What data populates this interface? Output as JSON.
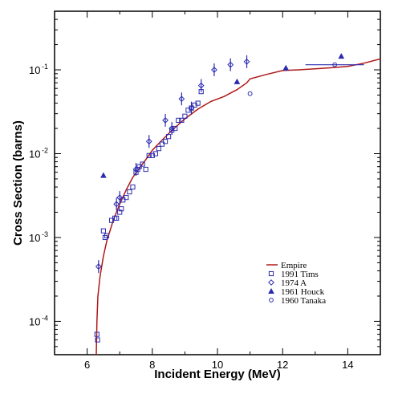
{
  "chart_data": {
    "type": "scatter",
    "xlabel": "Incident Energy (MeV)",
    "ylabel": "Cross Section (barns)",
    "xlim": [
      5,
      15
    ],
    "ylim": [
      4e-05,
      0.5
    ],
    "yscale": "log",
    "x_ticks": [
      "6",
      "8",
      "10",
      "12",
      "14"
    ],
    "y_ticks": [
      {
        "base": "10",
        "exp": "-4",
        "value": 0.0001
      },
      {
        "base": "10",
        "exp": "-3",
        "value": 0.001
      },
      {
        "base": "10",
        "exp": "-2",
        "value": 0.01
      },
      {
        "base": "10",
        "exp": "-1",
        "value": 0.1
      }
    ],
    "legend_position": "lower-right",
    "colors": {
      "curve": "#b01818",
      "data": "#2b2bb0"
    },
    "series": [
      {
        "name": "Empire",
        "kind": "line",
        "x": [
          6.28,
          6.3,
          6.33,
          6.4,
          6.5,
          6.6,
          6.8,
          7.0,
          7.2,
          7.4,
          7.6,
          7.8,
          8.0,
          8.3,
          8.6,
          9.0,
          9.4,
          9.8,
          10.2,
          10.6,
          10.9,
          11.0,
          11.5,
          12.0,
          12.5,
          13.0,
          13.5,
          14.0,
          14.5,
          15.0
        ],
        "y": [
          4e-05,
          0.0001,
          0.0002,
          0.00035,
          0.0006,
          0.0009,
          0.0016,
          0.0025,
          0.0037,
          0.0052,
          0.0067,
          0.0085,
          0.011,
          0.0145,
          0.019,
          0.026,
          0.034,
          0.042,
          0.048,
          0.058,
          0.07,
          0.078,
          0.088,
          0.098,
          0.1,
          0.103,
          0.106,
          0.11,
          0.12,
          0.135
        ]
      },
      {
        "name": "1991 Tims",
        "kind": "points",
        "marker": "square",
        "x": [
          6.3,
          6.32,
          6.5,
          6.55,
          6.6,
          6.75,
          6.85,
          6.9,
          7.0,
          7.05,
          7.1,
          7.2,
          7.3,
          7.4,
          7.5,
          7.55,
          7.6,
          7.7,
          7.8,
          7.9,
          8.0,
          8.1,
          8.2,
          8.3,
          8.4,
          8.5,
          8.6,
          8.7,
          8.8,
          8.9,
          9.0,
          9.1,
          9.2,
          9.3,
          9.4,
          9.5
        ],
        "y": [
          7e-05,
          6e-05,
          0.0012,
          0.001,
          0.00105,
          0.0016,
          0.0017,
          0.0017,
          0.002,
          0.0022,
          0.0028,
          0.003,
          0.0035,
          0.004,
          0.006,
          0.0065,
          0.007,
          0.0075,
          0.0065,
          0.0095,
          0.0095,
          0.01,
          0.0115,
          0.013,
          0.014,
          0.016,
          0.019,
          0.02,
          0.025,
          0.025,
          0.028,
          0.033,
          0.035,
          0.038,
          0.04,
          0.055
        ]
      },
      {
        "name": "1974 A",
        "kind": "points",
        "marker": "diamond",
        "x": [
          6.35,
          6.9,
          7.0,
          7.5,
          7.9,
          8.4,
          8.6,
          8.9,
          9.2,
          9.5,
          9.9,
          10.4,
          10.9
        ],
        "y": [
          0.00045,
          0.0025,
          0.003,
          0.0065,
          0.014,
          0.025,
          0.02,
          0.045,
          0.035,
          0.065,
          0.1,
          0.115,
          0.125
        ]
      },
      {
        "name": "1961 Houck",
        "kind": "points",
        "marker": "triangle",
        "x": [
          6.5,
          10.6,
          12.1,
          13.8
        ],
        "y": [
          0.0055,
          0.072,
          0.105,
          0.145
        ]
      },
      {
        "name": "1960 Tanaka",
        "kind": "points",
        "marker": "circle",
        "x": [
          11.0,
          13.6
        ],
        "y": [
          0.052,
          0.115
        ]
      }
    ]
  }
}
